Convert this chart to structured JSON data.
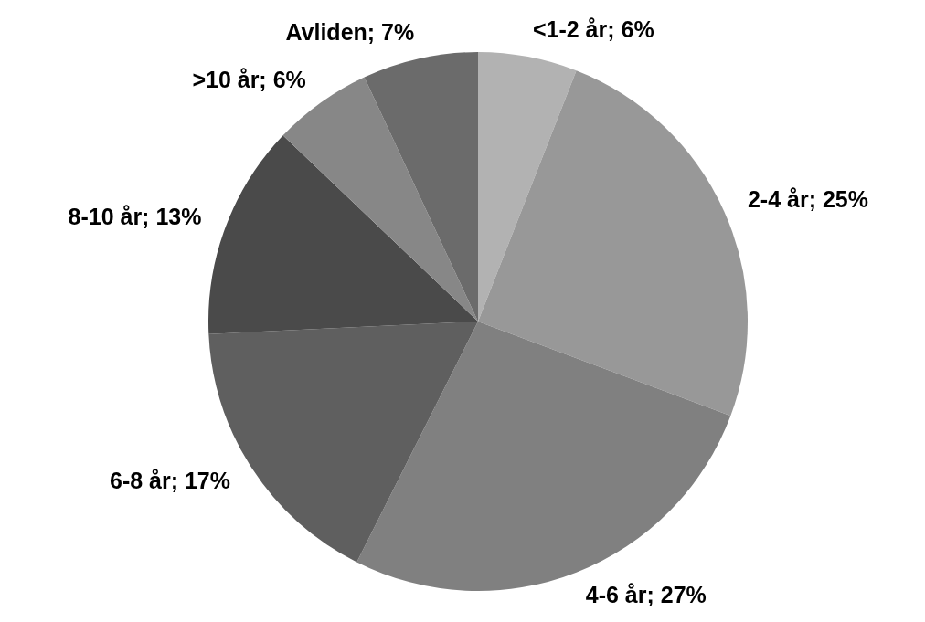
{
  "chart_data": {
    "type": "pie",
    "categories": [
      "<1-2 år",
      "2-4 år",
      "4-6 år",
      "6-8 år",
      "8-10 år",
      ">10 år",
      "Avliden"
    ],
    "values": [
      6,
      25,
      27,
      17,
      13,
      6,
      7
    ],
    "value_labels": [
      "6%",
      "25%",
      "27%",
      "17%",
      "13%",
      "6%",
      "7%"
    ],
    "colors": [
      "#b2b2b2",
      "#989898",
      "#808080",
      "#5f5f5f",
      "#4a4a4a",
      "#878787",
      "#6b6b6b"
    ],
    "legend": false
  }
}
